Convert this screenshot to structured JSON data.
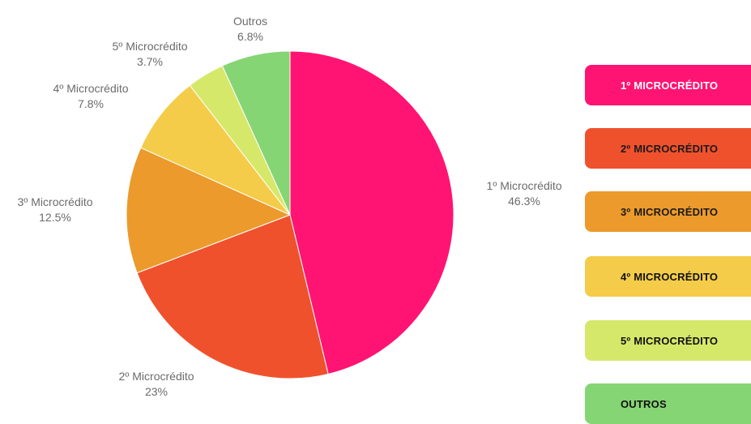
{
  "chart_data": {
    "type": "pie",
    "slices": [
      {
        "name": "1º Microcrédito",
        "pct_label": "46.3%",
        "value": 46.3,
        "color": "#ff1473"
      },
      {
        "name": "2º Microcrédito",
        "pct_label": "23%",
        "value": 23.0,
        "color": "#f0512d"
      },
      {
        "name": "3º Microcrédito",
        "pct_label": "12.5%",
        "value": 12.5,
        "color": "#ec9a2b"
      },
      {
        "name": "4º Microcrédito",
        "pct_label": "7.8%",
        "value": 7.8,
        "color": "#f4cc4a"
      },
      {
        "name": "5º Microcrédito",
        "pct_label": "3.7%",
        "value": 3.7,
        "color": "#d6e86a"
      },
      {
        "name": "Outros",
        "pct_label": "6.8%",
        "value": 6.8,
        "color": "#86d574"
      }
    ],
    "direction": "clockwise from top",
    "legend": {
      "placement": "right",
      "items": [
        {
          "label": "1º MICROCRÉDITO",
          "color": "#ff1473"
        },
        {
          "label": "2º MICROCRÉDITO",
          "color": "#f0512d"
        },
        {
          "label": "3º MICROCRÉDITO",
          "color": "#ec9a2b"
        },
        {
          "label": "4º MICROCRÉDITO",
          "color": "#f4cc4a"
        },
        {
          "label": "5º MICROCRÉDITO",
          "color": "#d6e86a"
        },
        {
          "label": "OUTROS",
          "color": "#86d574"
        }
      ]
    }
  }
}
